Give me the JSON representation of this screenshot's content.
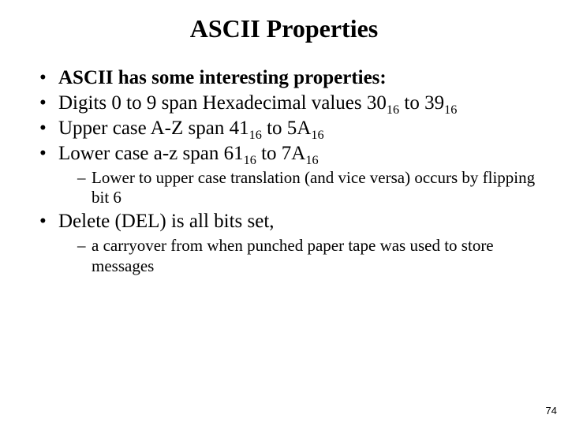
{
  "title": "ASCII Properties",
  "bullets": {
    "b1": "ASCII has some interesting properties:",
    "b2_pre": "Digits 0 to 9 span Hexadecimal values 30",
    "b2_sub1": "16",
    "b2_mid": " to 39",
    "b2_sub2": "16",
    "b3_pre": "Upper case A-Z span 41",
    "b3_sub1": "16",
    "b3_mid": " to 5A",
    "b3_sub2": "16",
    "b4_pre": "Lower case a-z span 61",
    "b4_sub1": "16",
    "b4_mid": " to 7A",
    "b4_sub2": "16",
    "b4_sub_item": "Lower to upper case translation (and vice versa) occurs by flipping bit 6",
    "b5": "Delete (DEL) is all bits set,",
    "b5_sub_item": "a carryover from when punched paper tape was used to store messages"
  },
  "page_number": "74",
  "style": {
    "background_color": "#ffffff",
    "text_color": "#000000",
    "title_fontsize": 32,
    "bullet_fontsize": 25,
    "sub_bullet_fontsize": 21,
    "font_family": "Times New Roman"
  }
}
